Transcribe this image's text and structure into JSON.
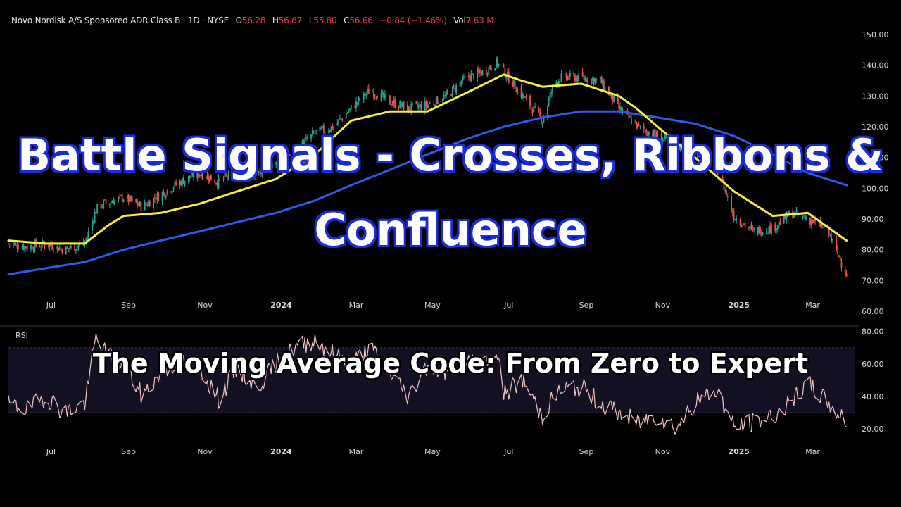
{
  "header": {
    "symbol": "Novo Nordisk A/S Sponsored ADR Class B · 1D · NYSE",
    "open_label": "O",
    "open_value": "56.28",
    "high_label": "H",
    "high_value": "56.87",
    "low_label": "L",
    "low_value": "55.80",
    "close_label": "C",
    "close_value": "56.66",
    "change": "−0.84 (−1.46%)",
    "vol_label": "Vol",
    "vol_value": "7.63 M"
  },
  "overlay": {
    "title_line1": "Battle Signals - Crosses, Ribbons &",
    "title_line2": "Confluence",
    "subtitle": "The Moving Average Code: From Zero to Expert"
  },
  "colors": {
    "background": "#000000",
    "candle_up": "#26a69a",
    "candle_down": "#ef5350",
    "ma_fast": "#f5ee3a",
    "ma_slow": "#2f5bea",
    "rsi_line": "#f4c4c4",
    "rsi_band": "#141024",
    "title_outline": "#1a2bd8",
    "header_value": "#f23645"
  },
  "chart_data": [
    {
      "type": "candlestick",
      "title": "Novo Nordisk A/S Sponsored ADR Class B · 1D · NYSE",
      "x_ticks": [
        "Jul",
        "Sep",
        "Nov",
        "2024",
        "Mar",
        "May",
        "Jul",
        "Sep",
        "Nov",
        "2025",
        "Mar"
      ],
      "y_ticks": [
        "150.00",
        "140.00",
        "130.00",
        "120.00",
        "110.00",
        "100.00",
        "90.00",
        "80.00",
        "70.00",
        "60.00"
      ],
      "ylim": [
        60,
        150
      ],
      "series": [
        {
          "type": "candles",
          "x": [
            "2023-06-01",
            "2023-06-16",
            "2023-07-01",
            "2023-07-16",
            "2023-08-01",
            "2023-08-10",
            "2023-08-16",
            "2023-09-01",
            "2023-09-16",
            "2023-10-01",
            "2023-10-16",
            "2023-11-01",
            "2023-11-16",
            "2023-12-01",
            "2023-12-16",
            "2024-01-01",
            "2024-01-16",
            "2024-02-01",
            "2024-02-16",
            "2024-03-01",
            "2024-03-16",
            "2024-04-01",
            "2024-04-16",
            "2024-05-01",
            "2024-05-16",
            "2024-06-01",
            "2024-06-16",
            "2024-06-25",
            "2024-07-01",
            "2024-07-16",
            "2024-08-01",
            "2024-08-10",
            "2024-08-16",
            "2024-09-01",
            "2024-09-16",
            "2024-10-01",
            "2024-10-16",
            "2024-11-01",
            "2024-11-16",
            "2024-12-01",
            "2024-12-18",
            "2024-12-21",
            "2025-01-01",
            "2025-01-16",
            "2025-02-01",
            "2025-02-16",
            "2025-03-01",
            "2025-03-16",
            "2025-04-01"
          ],
          "close": [
            82,
            81,
            82,
            80,
            82,
            93,
            95,
            97,
            94,
            98,
            102,
            105,
            102,
            106,
            104,
            108,
            112,
            118,
            120,
            126,
            132,
            128,
            126,
            127,
            130,
            136,
            138,
            141,
            138,
            130,
            122,
            134,
            136,
            136,
            135,
            126,
            120,
            117,
            114,
            112,
            107,
            104,
            91,
            86,
            87,
            92,
            90,
            87,
            72
          ]
        },
        {
          "name": "",
          "type": "line",
          "x": [
            "2023-06-01",
            "2023-07-01",
            "2023-08-01",
            "2023-08-20",
            "2023-09-01",
            "2023-10-01",
            "2023-11-01",
            "2023-12-01",
            "2024-01-01",
            "2024-02-01",
            "2024-03-01",
            "2024-04-01",
            "2024-05-01",
            "2024-06-01",
            "2024-07-01",
            "2024-07-15",
            "2024-08-01",
            "2024-09-01",
            "2024-10-01",
            "2024-10-15",
            "2024-11-01",
            "2024-12-01",
            "2025-01-01",
            "2025-02-01",
            "2025-03-01",
            "2025-04-01"
          ],
          "values": [
            83,
            82,
            82,
            88,
            91,
            92,
            95,
            99,
            103,
            111,
            122,
            125,
            125,
            131,
            137,
            135,
            133,
            134,
            130,
            126,
            120,
            110,
            99,
            91,
            92,
            83
          ]
        },
        {
          "name": "",
          "type": "line",
          "x": [
            "2023-06-01",
            "2023-07-01",
            "2023-08-01",
            "2023-09-01",
            "2023-10-01",
            "2023-11-01",
            "2023-12-01",
            "2024-01-01",
            "2024-02-01",
            "2024-03-01",
            "2024-04-01",
            "2024-05-01",
            "2024-06-01",
            "2024-07-01",
            "2024-08-01",
            "2024-09-01",
            "2024-10-01",
            "2024-11-01",
            "2024-12-01",
            "2025-01-01",
            "2025-02-01",
            "2025-03-01",
            "2025-04-01"
          ],
          "values": [
            72,
            74,
            76,
            80,
            83,
            86,
            89,
            92,
            96,
            101,
            106,
            111,
            116,
            120,
            123,
            125,
            125,
            123,
            121,
            117,
            111,
            105,
            101
          ]
        }
      ]
    },
    {
      "type": "line",
      "title": "RSI",
      "x_ticks": [
        "Jul",
        "Sep",
        "Nov",
        "2024",
        "Mar",
        "May",
        "Jul",
        "Sep",
        "Nov",
        "2025",
        "Mar"
      ],
      "y_ticks": [
        "80.00",
        "60.00",
        "40.00",
        "20.00"
      ],
      "ylim": [
        14,
        82
      ],
      "band": [
        30,
        70
      ],
      "series": [
        {
          "name": "",
          "x": [
            "2023-06-01",
            "2023-06-16",
            "2023-07-01",
            "2023-07-16",
            "2023-08-01",
            "2023-08-10",
            "2023-08-16",
            "2023-09-01",
            "2023-09-16",
            "2023-10-01",
            "2023-10-16",
            "2023-11-01",
            "2023-11-16",
            "2023-12-01",
            "2023-12-16",
            "2024-01-01",
            "2024-01-16",
            "2024-02-01",
            "2024-02-16",
            "2024-03-01",
            "2024-03-16",
            "2024-04-01",
            "2024-04-16",
            "2024-05-01",
            "2024-05-16",
            "2024-06-01",
            "2024-06-16",
            "2024-06-25",
            "2024-07-01",
            "2024-07-16",
            "2024-08-01",
            "2024-08-10",
            "2024-08-16",
            "2024-09-01",
            "2024-09-16",
            "2024-10-01",
            "2024-10-16",
            "2024-11-01",
            "2024-11-16",
            "2024-12-01",
            "2024-12-18",
            "2024-12-21",
            "2025-01-01",
            "2025-01-16",
            "2025-02-01",
            "2025-02-16",
            "2025-03-01",
            "2025-03-16",
            "2025-04-01"
          ],
          "values": [
            35,
            32,
            40,
            30,
            36,
            76,
            68,
            60,
            40,
            55,
            62,
            58,
            38,
            58,
            45,
            60,
            70,
            75,
            66,
            60,
            70,
            55,
            40,
            60,
            55,
            62,
            58,
            70,
            42,
            50,
            28,
            40,
            44,
            46,
            36,
            30,
            24,
            28,
            21,
            36,
            44,
            40,
            21,
            24,
            28,
            36,
            48,
            37,
            24
          ]
        }
      ]
    }
  ]
}
